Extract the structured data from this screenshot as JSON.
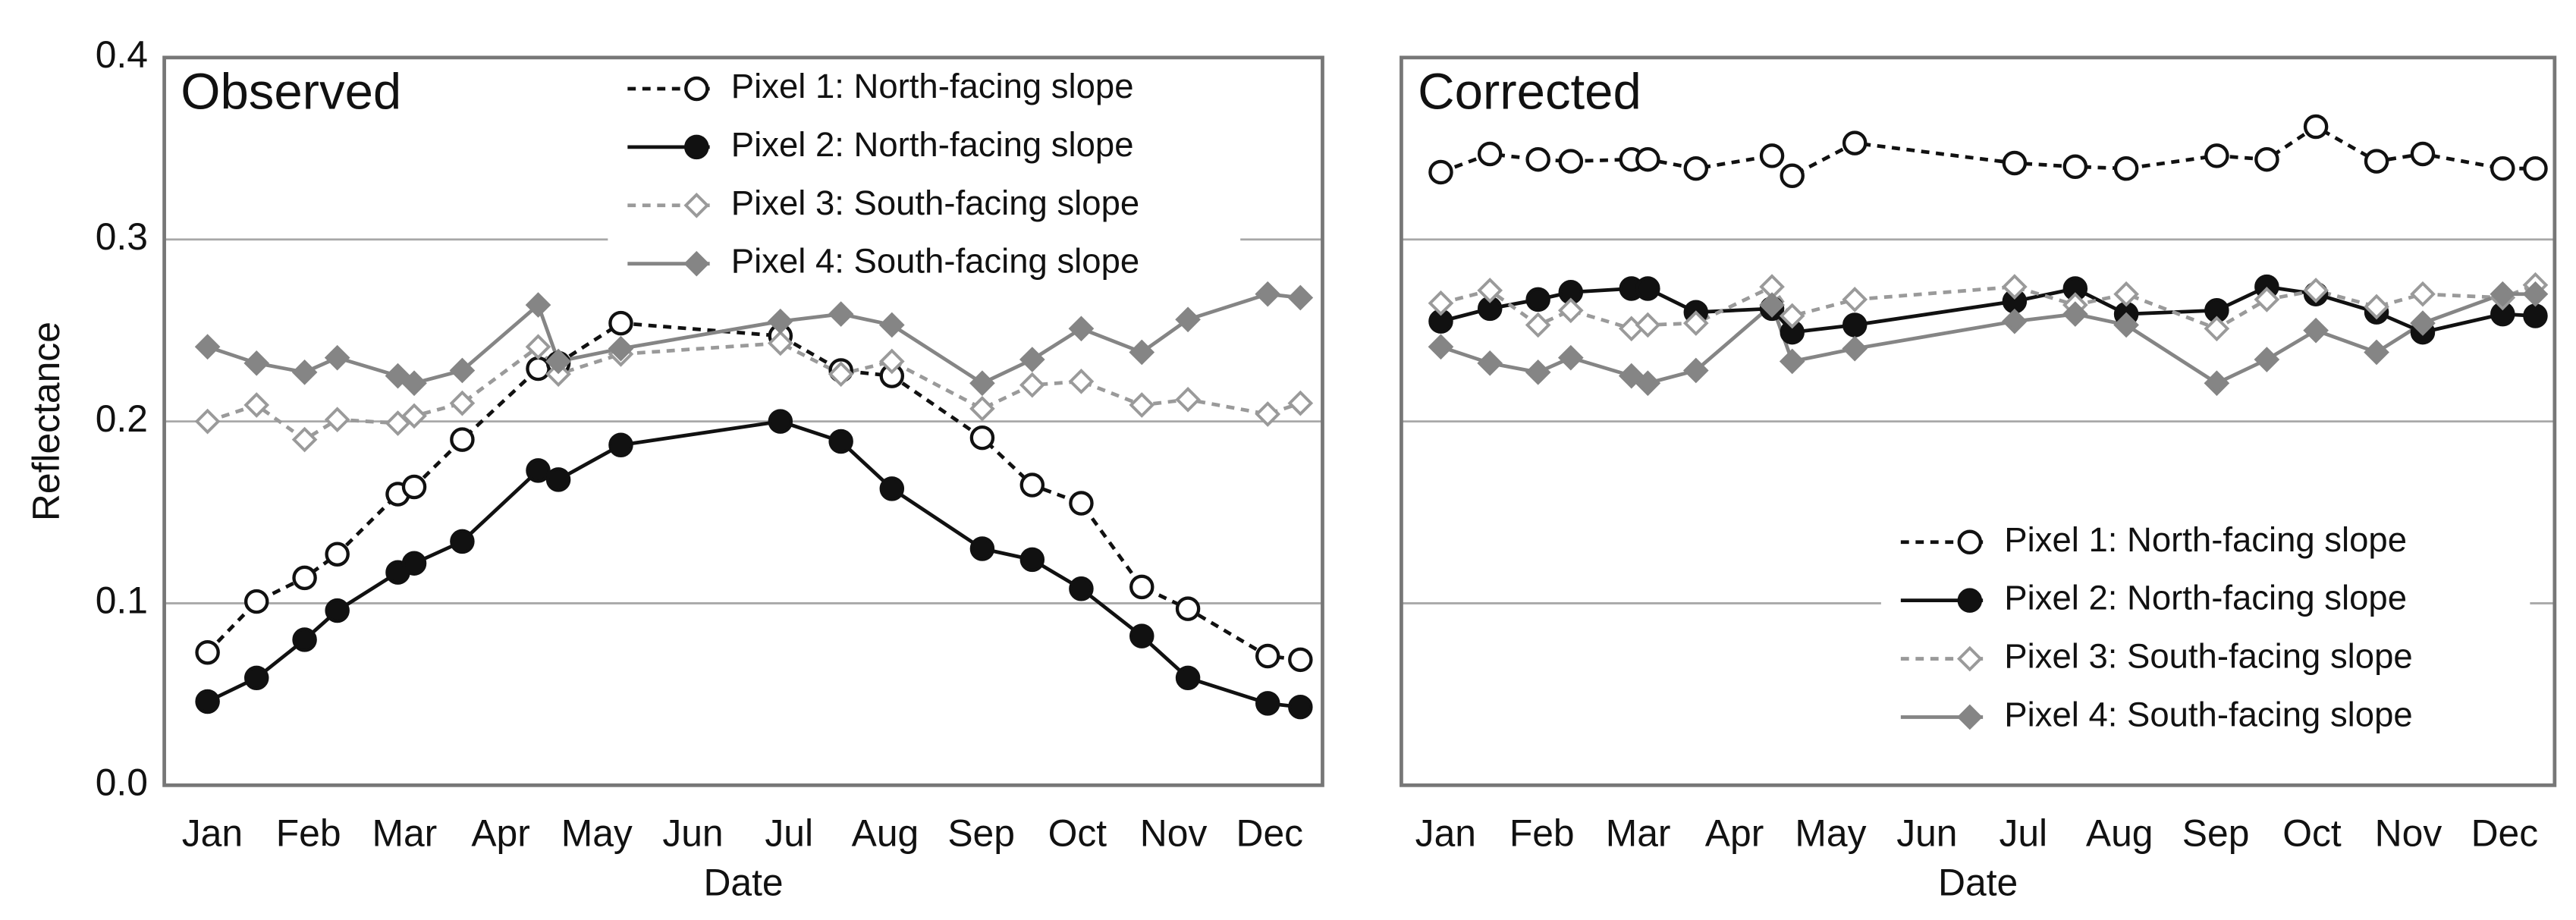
{
  "chart_data": [
    {
      "type": "line",
      "title": "Observed",
      "xlabel": "Date",
      "ylabel": "Reflectance",
      "x": [
        -0.05,
        0.46,
        0.96,
        1.3,
        1.93,
        2.1,
        2.6,
        3.39,
        3.6,
        4.25,
        5.91,
        6.54,
        7.07,
        8.01,
        8.53,
        9.04,
        9.67,
        10.15,
        10.98,
        11.32
      ],
      "xlim": [
        -0.5,
        11.55
      ],
      "xticks": [
        {
          "value": 0,
          "label": "Jan"
        },
        {
          "value": 1,
          "label": "Feb"
        },
        {
          "value": 2,
          "label": "Mar"
        },
        {
          "value": 3,
          "label": "Apr"
        },
        {
          "value": 4,
          "label": "May"
        },
        {
          "value": 5,
          "label": "Jun"
        },
        {
          "value": 6,
          "label": "Jul"
        },
        {
          "value": 7,
          "label": "Aug"
        },
        {
          "value": 8,
          "label": "Sep"
        },
        {
          "value": 9,
          "label": "Oct"
        },
        {
          "value": 10,
          "label": "Nov"
        },
        {
          "value": 11,
          "label": "Dec"
        }
      ],
      "ylim": [
        0,
        0.4
      ],
      "yticks": [
        {
          "value": 0,
          "label": "0.0"
        },
        0.1,
        0.2,
        0.3,
        0.4
      ],
      "show_ytick_labels": true,
      "grid": true,
      "legend": "upper right",
      "series": [
        {
          "name": "Pixel 1: North-facing slope",
          "color": "#111111",
          "dash": true,
          "marker": "open-circle",
          "values": [
            0.073,
            0.101,
            0.114,
            0.127,
            0.16,
            0.164,
            0.19,
            0.229,
            0.232,
            0.254,
            0.247,
            0.228,
            0.225,
            0.191,
            0.165,
            0.155,
            0.109,
            0.097,
            0.071,
            0.069
          ]
        },
        {
          "name": "Pixel 2: North-facing slope",
          "color": "#111111",
          "dash": false,
          "marker": "filled-circle",
          "values": [
            0.046,
            0.059,
            0.08,
            0.096,
            0.117,
            0.122,
            0.134,
            0.173,
            0.168,
            0.187,
            0.2,
            0.189,
            0.163,
            0.13,
            0.124,
            0.108,
            0.082,
            0.059,
            0.045,
            0.043
          ]
        },
        {
          "name": "Pixel 3: South-facing slope",
          "color": "#9a9a9a",
          "dash": true,
          "marker": "open-diamond",
          "values": [
            0.2,
            0.209,
            0.19,
            0.201,
            0.199,
            0.203,
            0.21,
            0.241,
            0.226,
            0.237,
            0.243,
            0.226,
            0.233,
            0.207,
            0.22,
            0.222,
            0.209,
            0.212,
            0.204,
            0.21
          ]
        },
        {
          "name": "Pixel 4: South-facing slope",
          "color": "#858585",
          "dash": false,
          "marker": "filled-diamond",
          "values": [
            0.241,
            0.232,
            0.227,
            0.235,
            0.225,
            0.221,
            0.228,
            0.264,
            0.233,
            0.24,
            0.255,
            0.259,
            0.253,
            0.221,
            0.234,
            0.251,
            0.238,
            0.256,
            0.27,
            0.268
          ]
        }
      ]
    },
    {
      "type": "line",
      "title": "Corrected",
      "xlabel": "Date",
      "x": [
        -0.05,
        0.46,
        0.96,
        1.3,
        1.93,
        2.1,
        2.6,
        3.39,
        3.6,
        4.25,
        5.91,
        6.54,
        7.07,
        8.01,
        8.53,
        9.04,
        9.67,
        10.15,
        10.98,
        11.32
      ],
      "xlim": [
        -0.46,
        11.52
      ],
      "xticks": [
        {
          "value": 0,
          "label": "Jan"
        },
        {
          "value": 1,
          "label": "Feb"
        },
        {
          "value": 2,
          "label": "Mar"
        },
        {
          "value": 3,
          "label": "Apr"
        },
        {
          "value": 4,
          "label": "May"
        },
        {
          "value": 5,
          "label": "Jun"
        },
        {
          "value": 6,
          "label": "Jul"
        },
        {
          "value": 7,
          "label": "Aug"
        },
        {
          "value": 8,
          "label": "Sep"
        },
        {
          "value": 9,
          "label": "Oct"
        },
        {
          "value": 10,
          "label": "Nov"
        },
        {
          "value": 11,
          "label": "Dec"
        }
      ],
      "ylim": [
        0,
        0.4
      ],
      "yticks": [
        0.1,
        0.2,
        0.3
      ],
      "show_ytick_labels": false,
      "grid": true,
      "legend": "lower right",
      "series": [
        {
          "name": "Pixel 1: North-facing slope",
          "color": "#111111",
          "dash": true,
          "marker": "open-circle",
          "values": [
            0.337,
            0.347,
            0.344,
            0.343,
            0.344,
            0.344,
            0.339,
            0.346,
            0.335,
            0.353,
            0.342,
            0.34,
            0.339,
            0.346,
            0.344,
            0.362,
            0.343,
            0.347,
            0.339,
            0.339
          ]
        },
        {
          "name": "Pixel 2: North-facing slope",
          "color": "#111111",
          "dash": false,
          "marker": "filled-circle",
          "values": [
            0.255,
            0.262,
            0.267,
            0.271,
            0.273,
            0.273,
            0.26,
            0.262,
            0.249,
            0.253,
            0.266,
            0.273,
            0.259,
            0.261,
            0.274,
            0.27,
            0.26,
            0.249,
            0.259,
            0.258
          ]
        },
        {
          "name": "Pixel 3: South-facing slope",
          "color": "#9a9a9a",
          "dash": true,
          "marker": "open-diamond",
          "values": [
            0.265,
            0.272,
            0.253,
            0.261,
            0.251,
            0.253,
            0.254,
            0.274,
            0.258,
            0.267,
            0.274,
            0.264,
            0.27,
            0.251,
            0.267,
            0.272,
            0.263,
            0.27,
            0.268,
            0.275
          ]
        },
        {
          "name": "Pixel 4: South-facing slope",
          "color": "#858585",
          "dash": false,
          "marker": "filled-diamond",
          "values": [
            0.241,
            0.232,
            0.227,
            0.235,
            0.225,
            0.221,
            0.228,
            0.264,
            0.233,
            0.24,
            0.255,
            0.259,
            0.253,
            0.221,
            0.234,
            0.25,
            0.238,
            0.254,
            0.27,
            0.27
          ]
        }
      ]
    }
  ]
}
